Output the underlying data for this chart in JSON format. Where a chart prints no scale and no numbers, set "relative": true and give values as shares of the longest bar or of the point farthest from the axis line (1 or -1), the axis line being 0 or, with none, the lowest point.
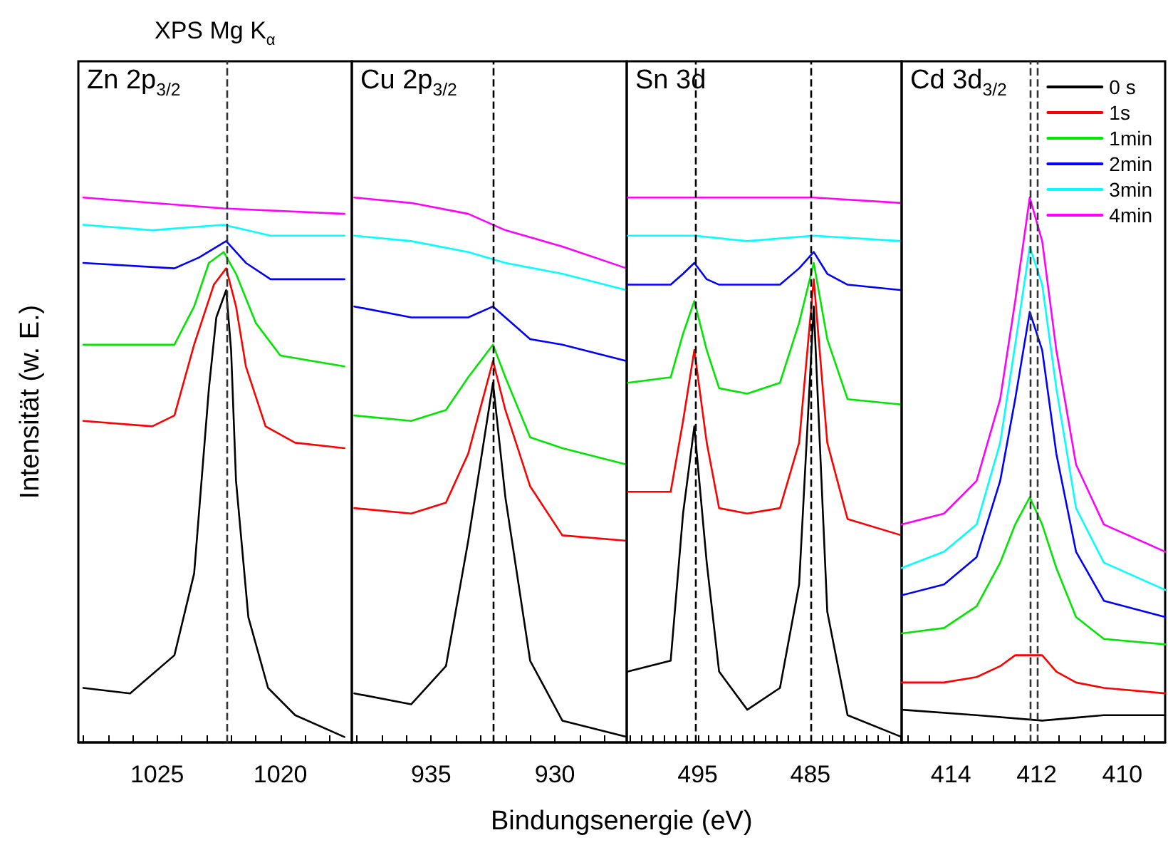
{
  "chart_data": [
    {
      "type": "line",
      "title": "XPS Mg K$_{α}$",
      "subtitle": "Zn 2p$_{3/2}$",
      "xlabel": "Bindungsenergie (eV)",
      "ylabel": "Intensität (w. E.)",
      "relative": true,
      "marker": "none",
      "line_style": "solid",
      "tick_labels": "x",
      "xlim": [
        1028.2,
        1017.1
      ],
      "xticks": [
        {
          "value": 1028,
          "label": null
        },
        {
          "value": 1027,
          "label": null
        },
        {
          "value": 1026,
          "label": null
        },
        1025,
        {
          "value": 1024,
          "label": null
        },
        {
          "value": 1023,
          "label": null
        },
        {
          "value": 1022,
          "label": null
        },
        {
          "value": 1021,
          "label": null
        },
        1020,
        {
          "value": 1019,
          "label": null
        },
        {
          "value": 1018,
          "label": null
        }
      ],
      "ref_lines": [
        {
          "axis": "x",
          "value": 1022.2,
          "color": "#333333",
          "line_style": "dashed"
        }
      ],
      "series": [
        {
          "color": "#000000",
          "x": [
            1028,
            1026.1,
            1024.3,
            1023.5,
            1022.9,
            1022.6,
            1022.2,
            1022.0,
            1021.8,
            1021.3,
            1020.5,
            1019.4,
            1017.4
          ],
          "values": [
            0.1,
            0.09,
            0.16,
            0.31,
            0.65,
            0.78,
            0.83,
            0.72,
            0.48,
            0.23,
            0.1,
            0.05,
            0.01
          ]
        },
        {
          "color": "#ff0000",
          "x": [
            1028,
            1025.2,
            1024.3,
            1023.5,
            1022.7,
            1022.2,
            1021.8,
            1021.4,
            1020.6,
            1019.4,
            1017.4
          ],
          "values": [
            0.59,
            0.58,
            0.6,
            0.73,
            0.84,
            0.87,
            0.8,
            0.69,
            0.58,
            0.55,
            0.54
          ]
        },
        {
          "color": "#00e600",
          "x": [
            1028,
            1024.3,
            1023.5,
            1022.9,
            1022.3,
            1021.8,
            1021.0,
            1020.0,
            1017.4
          ],
          "values": [
            0.73,
            0.73,
            0.8,
            0.88,
            0.9,
            0.86,
            0.77,
            0.71,
            0.69
          ]
        },
        {
          "color": "#0000ff",
          "x": [
            1028,
            1024.3,
            1023.3,
            1022.2,
            1021.4,
            1020.4,
            1017.4
          ],
          "values": [
            0.88,
            0.87,
            0.89,
            0.92,
            0.88,
            0.85,
            0.85
          ]
        },
        {
          "color": "#00ffff",
          "x": [
            1028,
            1025.2,
            1022.3,
            1020.4,
            1017.4
          ],
          "values": [
            0.95,
            0.94,
            0.95,
            0.93,
            0.93
          ]
        },
        {
          "color": "#ff00ff",
          "x": [
            1028,
            1022.3,
            1017.4
          ],
          "values": [
            1.0,
            0.98,
            0.97
          ]
        }
      ]
    },
    {
      "type": "line",
      "subtitle": "Cu 2p$_{3/2}$",
      "relative": true,
      "marker": "none",
      "line_style": "solid",
      "tick_labels": "x",
      "xlim": [
        938.2,
        927.1
      ],
      "xticks": [
        {
          "value": 938,
          "label": null
        },
        {
          "value": 937,
          "label": null
        },
        {
          "value": 936,
          "label": null
        },
        935,
        {
          "value": 934,
          "label": null
        },
        {
          "value": 933,
          "label": null
        },
        {
          "value": 932,
          "label": null
        },
        {
          "value": 931,
          "label": null
        },
        930,
        {
          "value": 929,
          "label": null
        },
        {
          "value": 928,
          "label": null
        }
      ],
      "ref_lines": [
        {
          "axis": "x",
          "value": 932.5,
          "color": "#000000",
          "line_style": "dashed"
        }
      ],
      "series": [
        {
          "color": "#000000",
          "x": [
            938.1,
            935.8,
            934.4,
            933.5,
            932.5,
            932.0,
            931.0,
            929.7,
            927.1
          ],
          "values": [
            0.09,
            0.07,
            0.14,
            0.37,
            0.66,
            0.45,
            0.15,
            0.04,
            0.01
          ]
        },
        {
          "color": "#ff0000",
          "x": [
            938.1,
            935.8,
            934.4,
            933.5,
            932.5,
            932.0,
            931.0,
            929.7,
            927.1
          ],
          "values": [
            0.43,
            0.42,
            0.44,
            0.53,
            0.7,
            0.61,
            0.47,
            0.38,
            0.37
          ]
        },
        {
          "color": "#00e600",
          "x": [
            938.1,
            935.8,
            934.4,
            933.5,
            932.5,
            932.0,
            931.0,
            929.7,
            927.1
          ],
          "values": [
            0.6,
            0.59,
            0.61,
            0.67,
            0.73,
            0.67,
            0.56,
            0.54,
            0.51
          ]
        },
        {
          "color": "#0000ff",
          "x": [
            938.1,
            935.8,
            934.4,
            933.5,
            932.5,
            932.0,
            931.0,
            929.7,
            927.1
          ],
          "values": [
            0.8,
            0.78,
            0.78,
            0.78,
            0.8,
            0.78,
            0.74,
            0.73,
            0.7
          ]
        },
        {
          "color": "#00ffff",
          "x": [
            938.1,
            935.8,
            933.5,
            932.0,
            929.7,
            927.1
          ],
          "values": [
            0.93,
            0.92,
            0.9,
            0.88,
            0.86,
            0.83
          ]
        },
        {
          "color": "#ff00ff",
          "x": [
            938.1,
            935.8,
            933.5,
            932.0,
            929.7,
            927.1
          ],
          "values": [
            1.0,
            0.99,
            0.97,
            0.94,
            0.91,
            0.87
          ]
        }
      ]
    },
    {
      "type": "line",
      "subtitle": "Sn 3d",
      "relative": true,
      "marker": "none",
      "line_style": "solid",
      "tick_labels": "x",
      "xlim": [
        501.3,
        476.9
      ],
      "xticks": [
        {
          "value": 501,
          "label": null
        },
        {
          "value": 500,
          "label": null
        },
        {
          "value": 499,
          "label": null
        },
        {
          "value": 498,
          "label": null
        },
        {
          "value": 497,
          "label": null
        },
        {
          "value": 496,
          "label": null
        },
        495,
        {
          "value": 494,
          "label": null
        },
        {
          "value": 493,
          "label": null
        },
        {
          "value": 492,
          "label": null
        },
        {
          "value": 491,
          "label": null
        },
        {
          "value": 490,
          "label": null
        },
        {
          "value": 489,
          "label": null
        },
        {
          "value": 488,
          "label": null
        },
        {
          "value": 487,
          "label": null
        },
        {
          "value": 486,
          "label": null
        },
        485,
        {
          "value": 484,
          "label": null
        },
        {
          "value": 483,
          "label": null
        },
        {
          "value": 482,
          "label": null
        },
        {
          "value": 481,
          "label": null
        },
        {
          "value": 480,
          "label": null
        },
        {
          "value": 479,
          "label": null
        },
        {
          "value": 478,
          "label": null
        },
        {
          "value": 477,
          "label": null
        }
      ],
      "ref_lines": [
        {
          "axis": "x",
          "value": 495.2,
          "color": "#000000",
          "line_style": "dashed"
        },
        {
          "axis": "x",
          "value": 484.9,
          "color": "#000000",
          "line_style": "dashed"
        }
      ],
      "series": [
        {
          "color": "#000000",
          "x": [
            501.2,
            497.4,
            496.3,
            495.3,
            494.2,
            493.1,
            490.6,
            487.7,
            486.0,
            484.7,
            483.5,
            481.7,
            476.9
          ],
          "values": [
            0.13,
            0.15,
            0.42,
            0.58,
            0.33,
            0.13,
            0.06,
            0.1,
            0.29,
            0.8,
            0.24,
            0.05,
            0.01
          ]
        },
        {
          "color": "#ff0000",
          "x": [
            501.2,
            497.4,
            496.3,
            495.3,
            494.2,
            493.1,
            490.6,
            487.7,
            486.0,
            484.7,
            483.5,
            481.7,
            476.9
          ],
          "values": [
            0.46,
            0.46,
            0.59,
            0.72,
            0.55,
            0.43,
            0.42,
            0.43,
            0.55,
            0.85,
            0.55,
            0.41,
            0.38
          ]
        },
        {
          "color": "#00e600",
          "x": [
            501.2,
            497.4,
            496.3,
            495.3,
            494.2,
            493.1,
            490.6,
            487.7,
            486.0,
            484.7,
            483.5,
            481.7,
            476.9
          ],
          "values": [
            0.66,
            0.67,
            0.75,
            0.81,
            0.72,
            0.65,
            0.64,
            0.66,
            0.77,
            0.88,
            0.74,
            0.63,
            0.62
          ]
        },
        {
          "color": "#0000ff",
          "x": [
            501.2,
            497.4,
            496.3,
            495.3,
            494.2,
            493.1,
            487.7,
            486.0,
            484.7,
            483.5,
            481.7,
            476.9
          ],
          "values": [
            0.84,
            0.84,
            0.86,
            0.88,
            0.85,
            0.84,
            0.84,
            0.87,
            0.9,
            0.86,
            0.84,
            0.83
          ]
        },
        {
          "color": "#00ffff",
          "x": [
            501.2,
            495.3,
            490.6,
            484.7,
            476.9
          ],
          "values": [
            0.93,
            0.93,
            0.92,
            0.93,
            0.92
          ]
        },
        {
          "color": "#ff00ff",
          "x": [
            501.2,
            495.3,
            490.6,
            484.7,
            476.9
          ],
          "values": [
            1.0,
            1.0,
            1.0,
            1.0,
            0.99
          ]
        }
      ]
    },
    {
      "type": "line",
      "subtitle": "Cd 3d$_{3/2}$",
      "relative": true,
      "marker": "none",
      "line_style": "solid",
      "tick_labels": "x",
      "legend": "top right",
      "xlim": [
        415.15,
        409.0
      ],
      "xticks": [
        {
          "value": 415,
          "label": null
        },
        {
          "value": 414.5,
          "label": null
        },
        414,
        {
          "value": 413.5,
          "label": null
        },
        {
          "value": 413,
          "label": null
        },
        {
          "value": 412.5,
          "label": null
        },
        412,
        {
          "value": 411.5,
          "label": null
        },
        {
          "value": 411,
          "label": null
        },
        {
          "value": 410.5,
          "label": null
        },
        410,
        {
          "value": 409.5,
          "label": null
        }
      ],
      "ref_lines": [
        {
          "axis": "x",
          "value": 412.15,
          "color": "#333333",
          "line_style": "dashed"
        },
        {
          "axis": "x",
          "value": 412.0,
          "color": "#333333",
          "line_style": "dashed"
        }
      ],
      "series": [
        {
          "name": "0 s",
          "color": "#000000",
          "x": [
            415.15,
            413.4,
            411.87,
            410.43,
            409.0
          ],
          "values": [
            0.06,
            0.05,
            0.04,
            0.05,
            0.05
          ]
        },
        {
          "name": "1s",
          "color": "#ff0000",
          "x": [
            415.15,
            414.16,
            413.4,
            412.85,
            412.5,
            412.16,
            411.87,
            411.54,
            411.08,
            410.43,
            409.0
          ],
          "values": [
            0.11,
            0.11,
            0.12,
            0.14,
            0.16,
            0.16,
            0.16,
            0.13,
            0.11,
            0.1,
            0.09
          ]
        },
        {
          "name": "1min",
          "color": "#00e600",
          "x": [
            415.15,
            414.16,
            413.4,
            412.85,
            412.5,
            412.16,
            411.87,
            411.54,
            411.08,
            410.43,
            409.0
          ],
          "values": [
            0.2,
            0.21,
            0.25,
            0.33,
            0.4,
            0.45,
            0.4,
            0.32,
            0.23,
            0.19,
            0.18
          ]
        },
        {
          "name": "2min",
          "color": "#0000ff",
          "x": [
            415.15,
            414.16,
            413.4,
            412.85,
            412.5,
            412.16,
            411.87,
            411.54,
            411.08,
            410.43,
            409.0
          ],
          "values": [
            0.27,
            0.29,
            0.34,
            0.48,
            0.63,
            0.79,
            0.72,
            0.53,
            0.35,
            0.26,
            0.23
          ]
        },
        {
          "name": "3min",
          "color": "#00ffff",
          "x": [
            415.15,
            414.16,
            413.4,
            412.85,
            412.5,
            412.16,
            411.87,
            411.54,
            411.08,
            410.43,
            409.0
          ],
          "values": [
            0.32,
            0.35,
            0.4,
            0.55,
            0.73,
            0.91,
            0.84,
            0.65,
            0.43,
            0.33,
            0.28
          ]
        },
        {
          "name": "4min",
          "color": "#ff00ff",
          "x": [
            415.15,
            414.16,
            413.4,
            412.85,
            412.5,
            412.16,
            411.87,
            411.54,
            411.08,
            410.43,
            409.0
          ],
          "values": [
            0.4,
            0.42,
            0.48,
            0.63,
            0.81,
            1.0,
            0.92,
            0.72,
            0.51,
            0.4,
            0.35
          ]
        }
      ]
    }
  ]
}
